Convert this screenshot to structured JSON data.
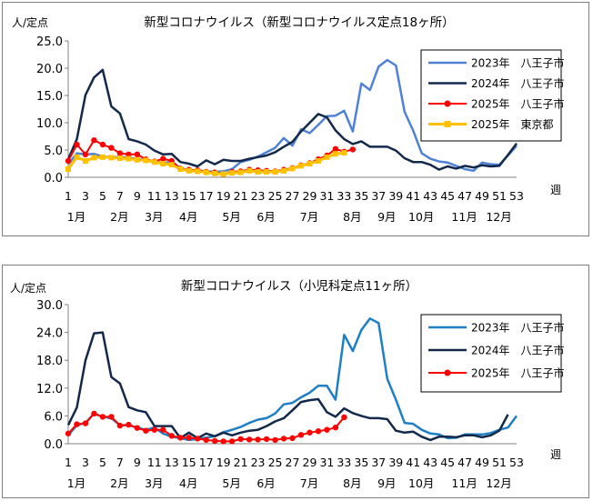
{
  "chart_data": [
    {
      "type": "line",
      "title": "新型コロナウイルス（新型コロナウイルス定点18ヶ所）",
      "ylabel": "人/定点",
      "xlabel": "週",
      "ylim": [
        0,
        25
      ],
      "yticks": [
        "0.0",
        "5.0",
        "10.0",
        "15.0",
        "20.0",
        "25.0"
      ],
      "xlim": [
        1,
        53
      ],
      "week_ticks": [
        "1",
        "3",
        "5",
        "7",
        "9",
        "11",
        "13",
        "15",
        "17",
        "19",
        "21",
        "23",
        "25",
        "27",
        "29",
        "31",
        "33",
        "35",
        "37",
        "39",
        "41",
        "43",
        "45",
        "47",
        "49",
        "51",
        "53"
      ],
      "month_labels": [
        "1月",
        "2月",
        "3月",
        "4月",
        "5月",
        "6月",
        "7月",
        "8月",
        "9月",
        "10月",
        "11月",
        "12月"
      ],
      "month_weeks": [
        1,
        6,
        10,
        14,
        19,
        23,
        28,
        33,
        37,
        41,
        46,
        50
      ],
      "grid": false,
      "legend_position": "top-right",
      "series": [
        {
          "name": "2023年　八王子市",
          "color": "#4f81d7",
          "marker": "none",
          "width": 2.5,
          "values": [
            2.4,
            4.4,
            4.2,
            4.3,
            3.8,
            3.7,
            3.7,
            3.6,
            3.4,
            3.1,
            2.8,
            2.7,
            2.7,
            1.7,
            1.3,
            1.3,
            1.1,
            1.0,
            1.1,
            1.5,
            2.8,
            3.2,
            3.8,
            4.6,
            5.4,
            7.2,
            5.8,
            8.8,
            8.1,
            9.6,
            11.2,
            11.3,
            12.2,
            8.4,
            17.2,
            16.0,
            20.3,
            21.5,
            20.5,
            12.0,
            8.6,
            4.4,
            3.4,
            2.9,
            2.7,
            2.1,
            1.5,
            1.2,
            2.7,
            2.4,
            2.3,
            4.0,
            5.8
          ]
        },
        {
          "name": "2024年　八王子市",
          "color": "#13294b",
          "marker": "none",
          "width": 2.5,
          "values": [
            3.3,
            7.0,
            15.1,
            18.3,
            19.7,
            13.0,
            11.7,
            7.0,
            6.6,
            6.0,
            4.9,
            4.2,
            4.3,
            2.8,
            2.5,
            2.0,
            3.1,
            2.4,
            3.2,
            3.0,
            3.0,
            3.4,
            3.7,
            4.0,
            4.6,
            5.6,
            6.5,
            8.4,
            10.0,
            11.6,
            11.0,
            8.6,
            7.0,
            6.1,
            6.6,
            5.6,
            5.6,
            5.6,
            4.9,
            3.5,
            2.8,
            2.8,
            2.3,
            1.4,
            2.0,
            1.6,
            2.1,
            1.8,
            2.2,
            2.0,
            2.1,
            4.1,
            6.2
          ]
        },
        {
          "name": "2025年　八王子市",
          "color": "#ff0000",
          "marker": "circle",
          "width": 2,
          "values": [
            3.0,
            6.0,
            4.2,
            6.8,
            6.0,
            5.4,
            4.4,
            4.2,
            4.2,
            3.3,
            2.9,
            3.4,
            3.0,
            1.6,
            1.4,
            1.3,
            1.0,
            0.9,
            0.6,
            1.0,
            1.1,
            1.4,
            1.3,
            1.2,
            1.1,
            1.4,
            1.7,
            2.2,
            2.6,
            3.3,
            4.0,
            5.2,
            4.7,
            5.1
          ]
        },
        {
          "name": "2025年　東京都",
          "color": "#ffc000",
          "marker": "square",
          "width": 3,
          "values": [
            1.5,
            3.7,
            3.0,
            3.6,
            3.7,
            3.6,
            3.5,
            3.4,
            3.2,
            3.1,
            2.8,
            2.5,
            2.3,
            1.5,
            1.2,
            1.1,
            0.9,
            0.7,
            0.6,
            0.8,
            0.9,
            1.2,
            1.0,
            1.0,
            1.0,
            1.2,
            1.6,
            2.1,
            2.5,
            3.0,
            3.7,
            4.3,
            4.5
          ]
        }
      ]
    },
    {
      "type": "line",
      "title": "新型コロナウイルス（小児科定点11ヶ所）",
      "ylabel": "人/定点",
      "xlabel": "週",
      "ylim": [
        0,
        30
      ],
      "yticks": [
        "0.0",
        "6.0",
        "12.0",
        "18.0",
        "24.0",
        "30.0"
      ],
      "xlim": [
        1,
        53
      ],
      "week_ticks": [
        "1",
        "3",
        "5",
        "7",
        "9",
        "11",
        "13",
        "15",
        "17",
        "19",
        "21",
        "23",
        "25",
        "27",
        "29",
        "31",
        "33",
        "35",
        "37",
        "39",
        "41",
        "43",
        "45",
        "47",
        "49",
        "51",
        "53"
      ],
      "month_labels": [
        "1月",
        "2月",
        "3月",
        "4月",
        "5月",
        "6月",
        "7月",
        "8月",
        "9月",
        "10月",
        "11月",
        "12月"
      ],
      "month_weeks": [
        1,
        6,
        10,
        14,
        19,
        23,
        28,
        33,
        37,
        41,
        46,
        50
      ],
      "grid": false,
      "legend_position": "top-right",
      "series": [
        {
          "name": "2023年　八王子市",
          "color": "#1f7fc4",
          "marker": "none",
          "width": 2.5,
          "values": [
            1.8,
            4.0,
            4.5,
            6.5,
            5.8,
            5.5,
            4.0,
            4.0,
            3.5,
            3.0,
            3.5,
            2.2,
            1.5,
            1.2,
            0.8,
            1.0,
            1.3,
            1.6,
            2.5,
            3.0,
            3.6,
            4.5,
            5.2,
            5.5,
            6.5,
            8.5,
            8.8,
            10.0,
            11.0,
            12.5,
            12.5,
            9.5,
            23.5,
            20.0,
            24.5,
            27.0,
            26.0,
            14.0,
            9.5,
            4.5,
            4.3,
            3.0,
            2.2,
            2.0,
            1.2,
            1.3,
            2.0,
            2.0,
            2.0,
            2.3,
            3.0,
            3.5,
            6.0
          ]
        },
        {
          "name": "2024年　八王子市",
          "color": "#13294b",
          "marker": "none",
          "width": 2.5,
          "values": [
            4.0,
            7.8,
            18.0,
            23.8,
            24.0,
            14.4,
            13.0,
            7.9,
            7.2,
            6.8,
            3.8,
            3.8,
            3.8,
            1.2,
            2.4,
            1.2,
            2.2,
            1.6,
            2.4,
            1.8,
            2.4,
            2.8,
            3.0,
            3.8,
            4.8,
            5.5,
            7.2,
            9.0,
            9.4,
            9.6,
            6.8,
            5.8,
            7.6,
            6.6,
            6.0,
            5.5,
            5.5,
            5.3,
            2.8,
            2.4,
            2.6,
            1.5,
            0.8,
            1.5,
            1.5,
            1.4,
            1.8,
            1.8,
            1.4,
            1.8,
            2.8,
            6.3
          ]
        },
        {
          "name": "2025年　八王子市",
          "color": "#ff0000",
          "marker": "circle",
          "width": 2,
          "values": [
            2.2,
            4.2,
            4.4,
            6.5,
            5.8,
            5.8,
            3.9,
            4.1,
            3.4,
            2.8,
            3.0,
            3.0,
            1.7,
            1.3,
            1.3,
            1.1,
            0.8,
            0.6,
            0.5,
            0.5,
            1.0,
            0.9,
            0.9,
            1.0,
            0.8,
            1.1,
            1.2,
            1.9,
            2.4,
            2.7,
            3.0,
            3.5,
            5.7
          ]
        }
      ]
    }
  ]
}
